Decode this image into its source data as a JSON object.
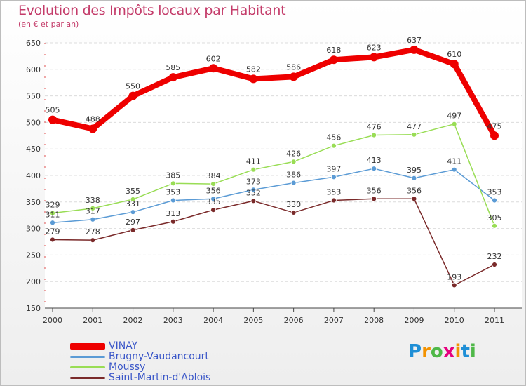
{
  "title": "Evolution des Impôts locaux par Habitant",
  "subtitle": "(en € et par an)",
  "logo": {
    "letters": [
      "P",
      "r",
      "o",
      "x",
      "i",
      "t",
      "i"
    ],
    "colors": [
      "#1f8fd6",
      "#f39200",
      "#4fb848",
      "#e6007e",
      "#f39200",
      "#1f8fd6",
      "#4fb848"
    ]
  },
  "chart_data": {
    "type": "line",
    "title": "Evolution des Impôts locaux par Habitant",
    "subtitle": "(en € et par an)",
    "xlabel": "",
    "ylabel": "",
    "ylim": [
      150,
      650
    ],
    "yticks": [
      150,
      200,
      250,
      300,
      350,
      400,
      450,
      500,
      550,
      600,
      650
    ],
    "grid": true,
    "legend_position": "bottom-left",
    "x": [
      "2000",
      "2001",
      "2002",
      "2003",
      "2004",
      "2005",
      "2006",
      "2007",
      "2008",
      "2009",
      "2010",
      "2011"
    ],
    "series": [
      {
        "name": "VINAY",
        "color": "#ee0000",
        "bold": true,
        "values": [
          505,
          488,
          550,
          585,
          602,
          582,
          586,
          618,
          623,
          637,
          610,
          475
        ]
      },
      {
        "name": "Brugny-Vaudancourt",
        "color": "#5b9bd5",
        "bold": false,
        "values": [
          311,
          317,
          331,
          353,
          356,
          373,
          386,
          397,
          413,
          395,
          411,
          353
        ]
      },
      {
        "name": "Moussy",
        "color": "#99dd55",
        "bold": false,
        "values": [
          329,
          338,
          355,
          385,
          384,
          411,
          426,
          456,
          476,
          477,
          497,
          305
        ]
      },
      {
        "name": "Saint-Martin-d'Ablois",
        "color": "#7a2a2a",
        "bold": false,
        "values": [
          279,
          278,
          297,
          313,
          335,
          352,
          330,
          353,
          356,
          356,
          193,
          232
        ]
      }
    ]
  }
}
